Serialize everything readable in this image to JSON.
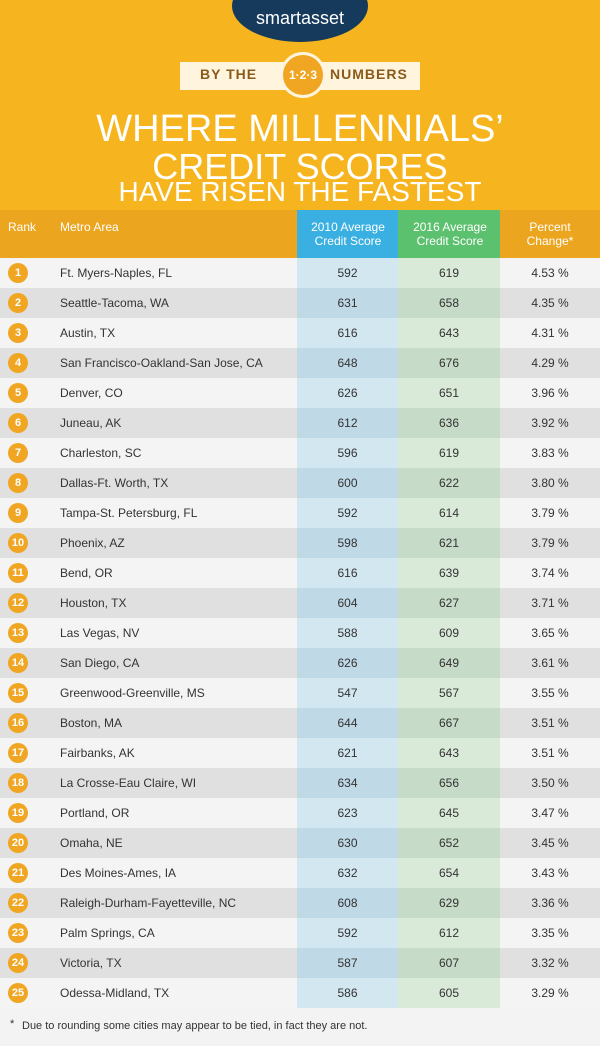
{
  "header": {
    "brand": "smartasset",
    "badge": {
      "left": "BY THE",
      "center": "1·2·3",
      "right": "NUMBERS"
    },
    "title": [
      "WHERE MILLENNIALS’",
      "CREDIT SCORES",
      "HAVE RISEN THE FASTEST"
    ]
  },
  "table": {
    "columns": [
      "Rank",
      "Metro Area",
      "2010 Average Credit Score",
      "2016 Average Credit Score",
      "Percent Change*"
    ],
    "rows": [
      [
        "1",
        "Ft. Myers-Naples, FL",
        "592",
        "619",
        "4.53 %"
      ],
      [
        "2",
        "Seattle-Tacoma, WA",
        "631",
        "658",
        "4.35 %"
      ],
      [
        "3",
        "Austin, TX",
        "616",
        "643",
        "4.31 %"
      ],
      [
        "4",
        "San Francisco-Oakland-San Jose, CA",
        "648",
        "676",
        "4.29 %"
      ],
      [
        "5",
        "Denver, CO",
        "626",
        "651",
        "3.96 %"
      ],
      [
        "6",
        "Juneau, AK",
        "612",
        "636",
        "3.92 %"
      ],
      [
        "7",
        "Charleston, SC",
        "596",
        "619",
        "3.83 %"
      ],
      [
        "8",
        "Dallas-Ft. Worth, TX",
        "600",
        "622",
        "3.80 %"
      ],
      [
        "9",
        "Tampa-St. Petersburg, FL",
        "592",
        "614",
        "3.79 %"
      ],
      [
        "10",
        "Phoenix, AZ",
        "598",
        "621",
        "3.79 %"
      ],
      [
        "11",
        "Bend, OR",
        "616",
        "639",
        "3.74 %"
      ],
      [
        "12",
        "Houston, TX",
        "604",
        "627",
        "3.71 %"
      ],
      [
        "13",
        "Las Vegas, NV",
        "588",
        "609",
        "3.65 %"
      ],
      [
        "14",
        "San Diego, CA",
        "626",
        "649",
        "3.61 %"
      ],
      [
        "15",
        "Greenwood-Greenville, MS",
        "547",
        "567",
        "3.55 %"
      ],
      [
        "16",
        "Boston, MA",
        "644",
        "667",
        "3.51 %"
      ],
      [
        "17",
        "Fairbanks, AK",
        "621",
        "643",
        "3.51 %"
      ],
      [
        "18",
        "La Crosse-Eau Claire, WI",
        "634",
        "656",
        "3.50 %"
      ],
      [
        "19",
        "Portland, OR",
        "623",
        "645",
        "3.47 %"
      ],
      [
        "20",
        "Omaha, NE",
        "630",
        "652",
        "3.45 %"
      ],
      [
        "21",
        "Des Moines-Ames, IA",
        "632",
        "654",
        "3.43 %"
      ],
      [
        "22",
        "Raleigh-Durham-Fayetteville, NC",
        "608",
        "629",
        "3.36 %"
      ],
      [
        "23",
        "Palm Springs, CA",
        "592",
        "612",
        "3.35 %"
      ],
      [
        "24",
        "Victoria, TX",
        "587",
        "607",
        "3.32 %"
      ],
      [
        "25",
        "Odessa-Midland, TX",
        "586",
        "605",
        "3.29 %"
      ]
    ]
  },
  "footnote": {
    "mark": "*",
    "text": "Due to rounding some cities may appear to be tied, in fact they are not."
  }
}
